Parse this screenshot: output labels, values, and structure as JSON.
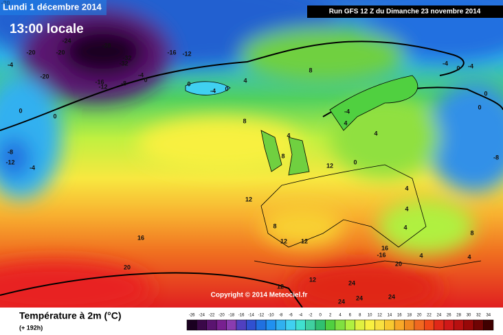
{
  "header": {
    "date": "Lundi 1 décembre 2014",
    "time": "13:00 locale",
    "run": "Run GFS 12 Z du Dimanche 23 novembre 2014",
    "copyright": "Copyright © 2014 Meteociel.fr"
  },
  "map_labels": [
    -20,
    -24,
    -28,
    -32,
    -32,
    -20,
    -20,
    -16,
    -12,
    -4,
    -20,
    -16,
    -12,
    -8,
    -4,
    0,
    0,
    -4,
    0,
    4,
    0,
    0,
    -8,
    -12,
    -4,
    8,
    8,
    -4,
    0,
    -4,
    0,
    0,
    -4,
    4,
    4,
    4,
    8,
    12,
    0,
    -8,
    4,
    12,
    4,
    4,
    8,
    16,
    12,
    12,
    8,
    16,
    -16,
    4,
    4,
    20,
    20,
    12,
    12,
    24,
    24,
    24,
    24
  ],
  "legend": {
    "title": "Température à 2m (°C)",
    "subtitle": "(+ 192h)",
    "ticks": [
      -26,
      -24,
      -22,
      -20,
      -18,
      -16,
      -14,
      -12,
      -10,
      -8,
      -6,
      -4,
      -2,
      0,
      2,
      4,
      6,
      8,
      10,
      12,
      14,
      16,
      18,
      20,
      22,
      24,
      26,
      28,
      30,
      32,
      34
    ],
    "colors": [
      "#1a0020",
      "#3a0848",
      "#5a1470",
      "#782090",
      "#8a3cb0",
      "#5040c0",
      "#3050d0",
      "#2070e0",
      "#2090f0",
      "#30b0f0",
      "#40d0f0",
      "#40e0d0",
      "#40d0a0",
      "#30c070",
      "#50d040",
      "#80e040",
      "#b0f040",
      "#e0f040",
      "#f8f040",
      "#f8e040",
      "#f8c830",
      "#f8a828",
      "#f08820",
      "#f06820",
      "#f04818",
      "#e02818",
      "#d01818",
      "#b81010",
      "#980808",
      "#700404",
      "#400000"
    ]
  }
}
